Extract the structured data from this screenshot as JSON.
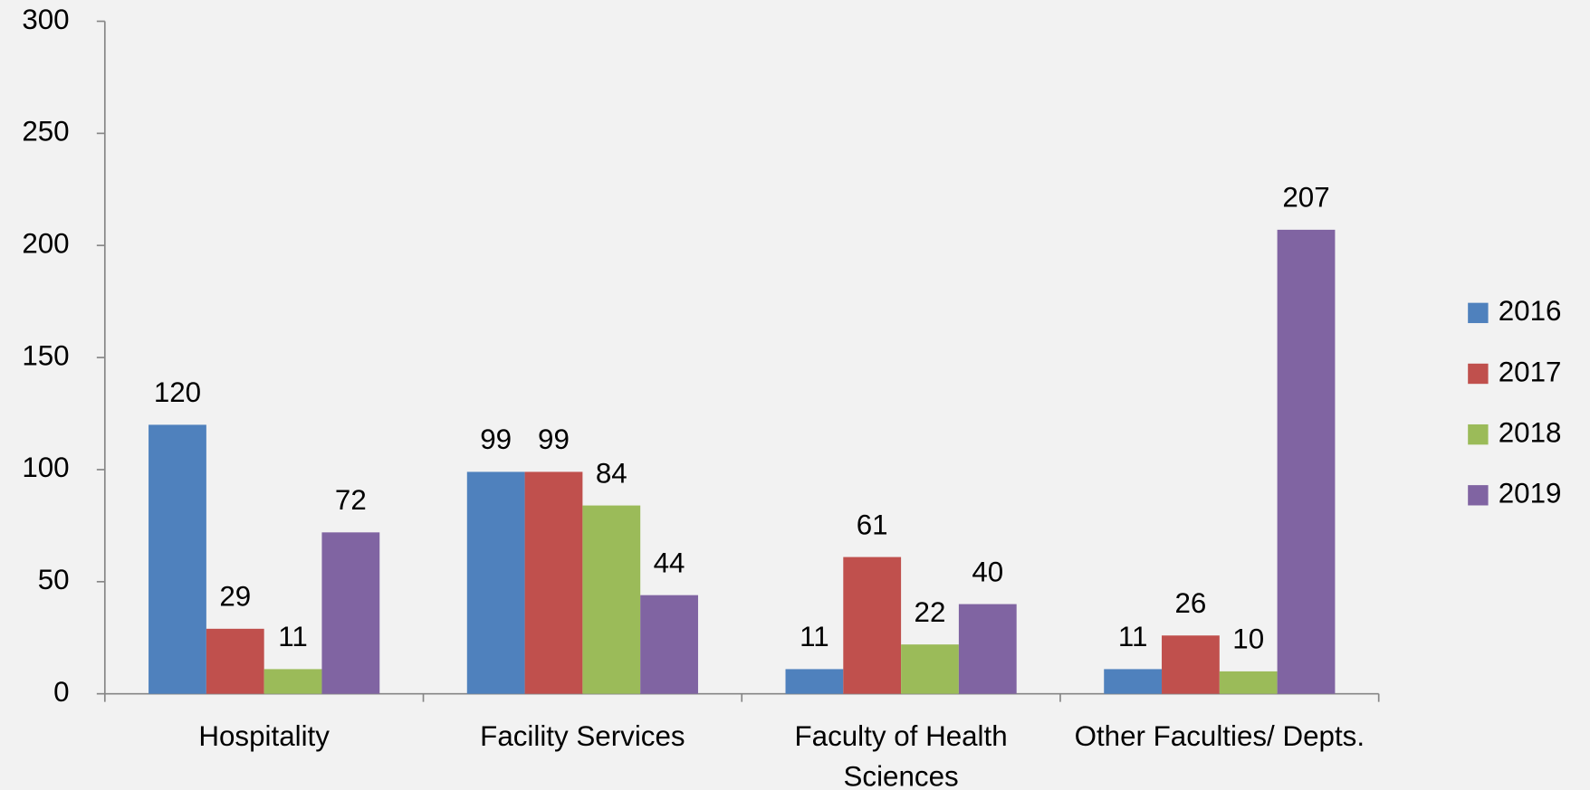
{
  "chart_data": {
    "type": "bar",
    "categories": [
      "Hospitality",
      "Facility Services",
      "Faculty of Health Sciences",
      "Other Faculties/ Depts."
    ],
    "series": [
      {
        "name": "2016",
        "color": "#4f81bd",
        "values": [
          120,
          99,
          11,
          11
        ]
      },
      {
        "name": "2017",
        "color": "#c0504d",
        "values": [
          29,
          99,
          61,
          26
        ]
      },
      {
        "name": "2018",
        "color": "#9bbb59",
        "values": [
          11,
          84,
          22,
          10
        ]
      },
      {
        "name": "2019",
        "color": "#8064a2",
        "values": [
          72,
          44,
          40,
          207
        ]
      }
    ],
    "ylim": [
      0,
      300
    ],
    "yticks": [
      0,
      50,
      100,
      150,
      200,
      250,
      300
    ],
    "legend": "right"
  }
}
